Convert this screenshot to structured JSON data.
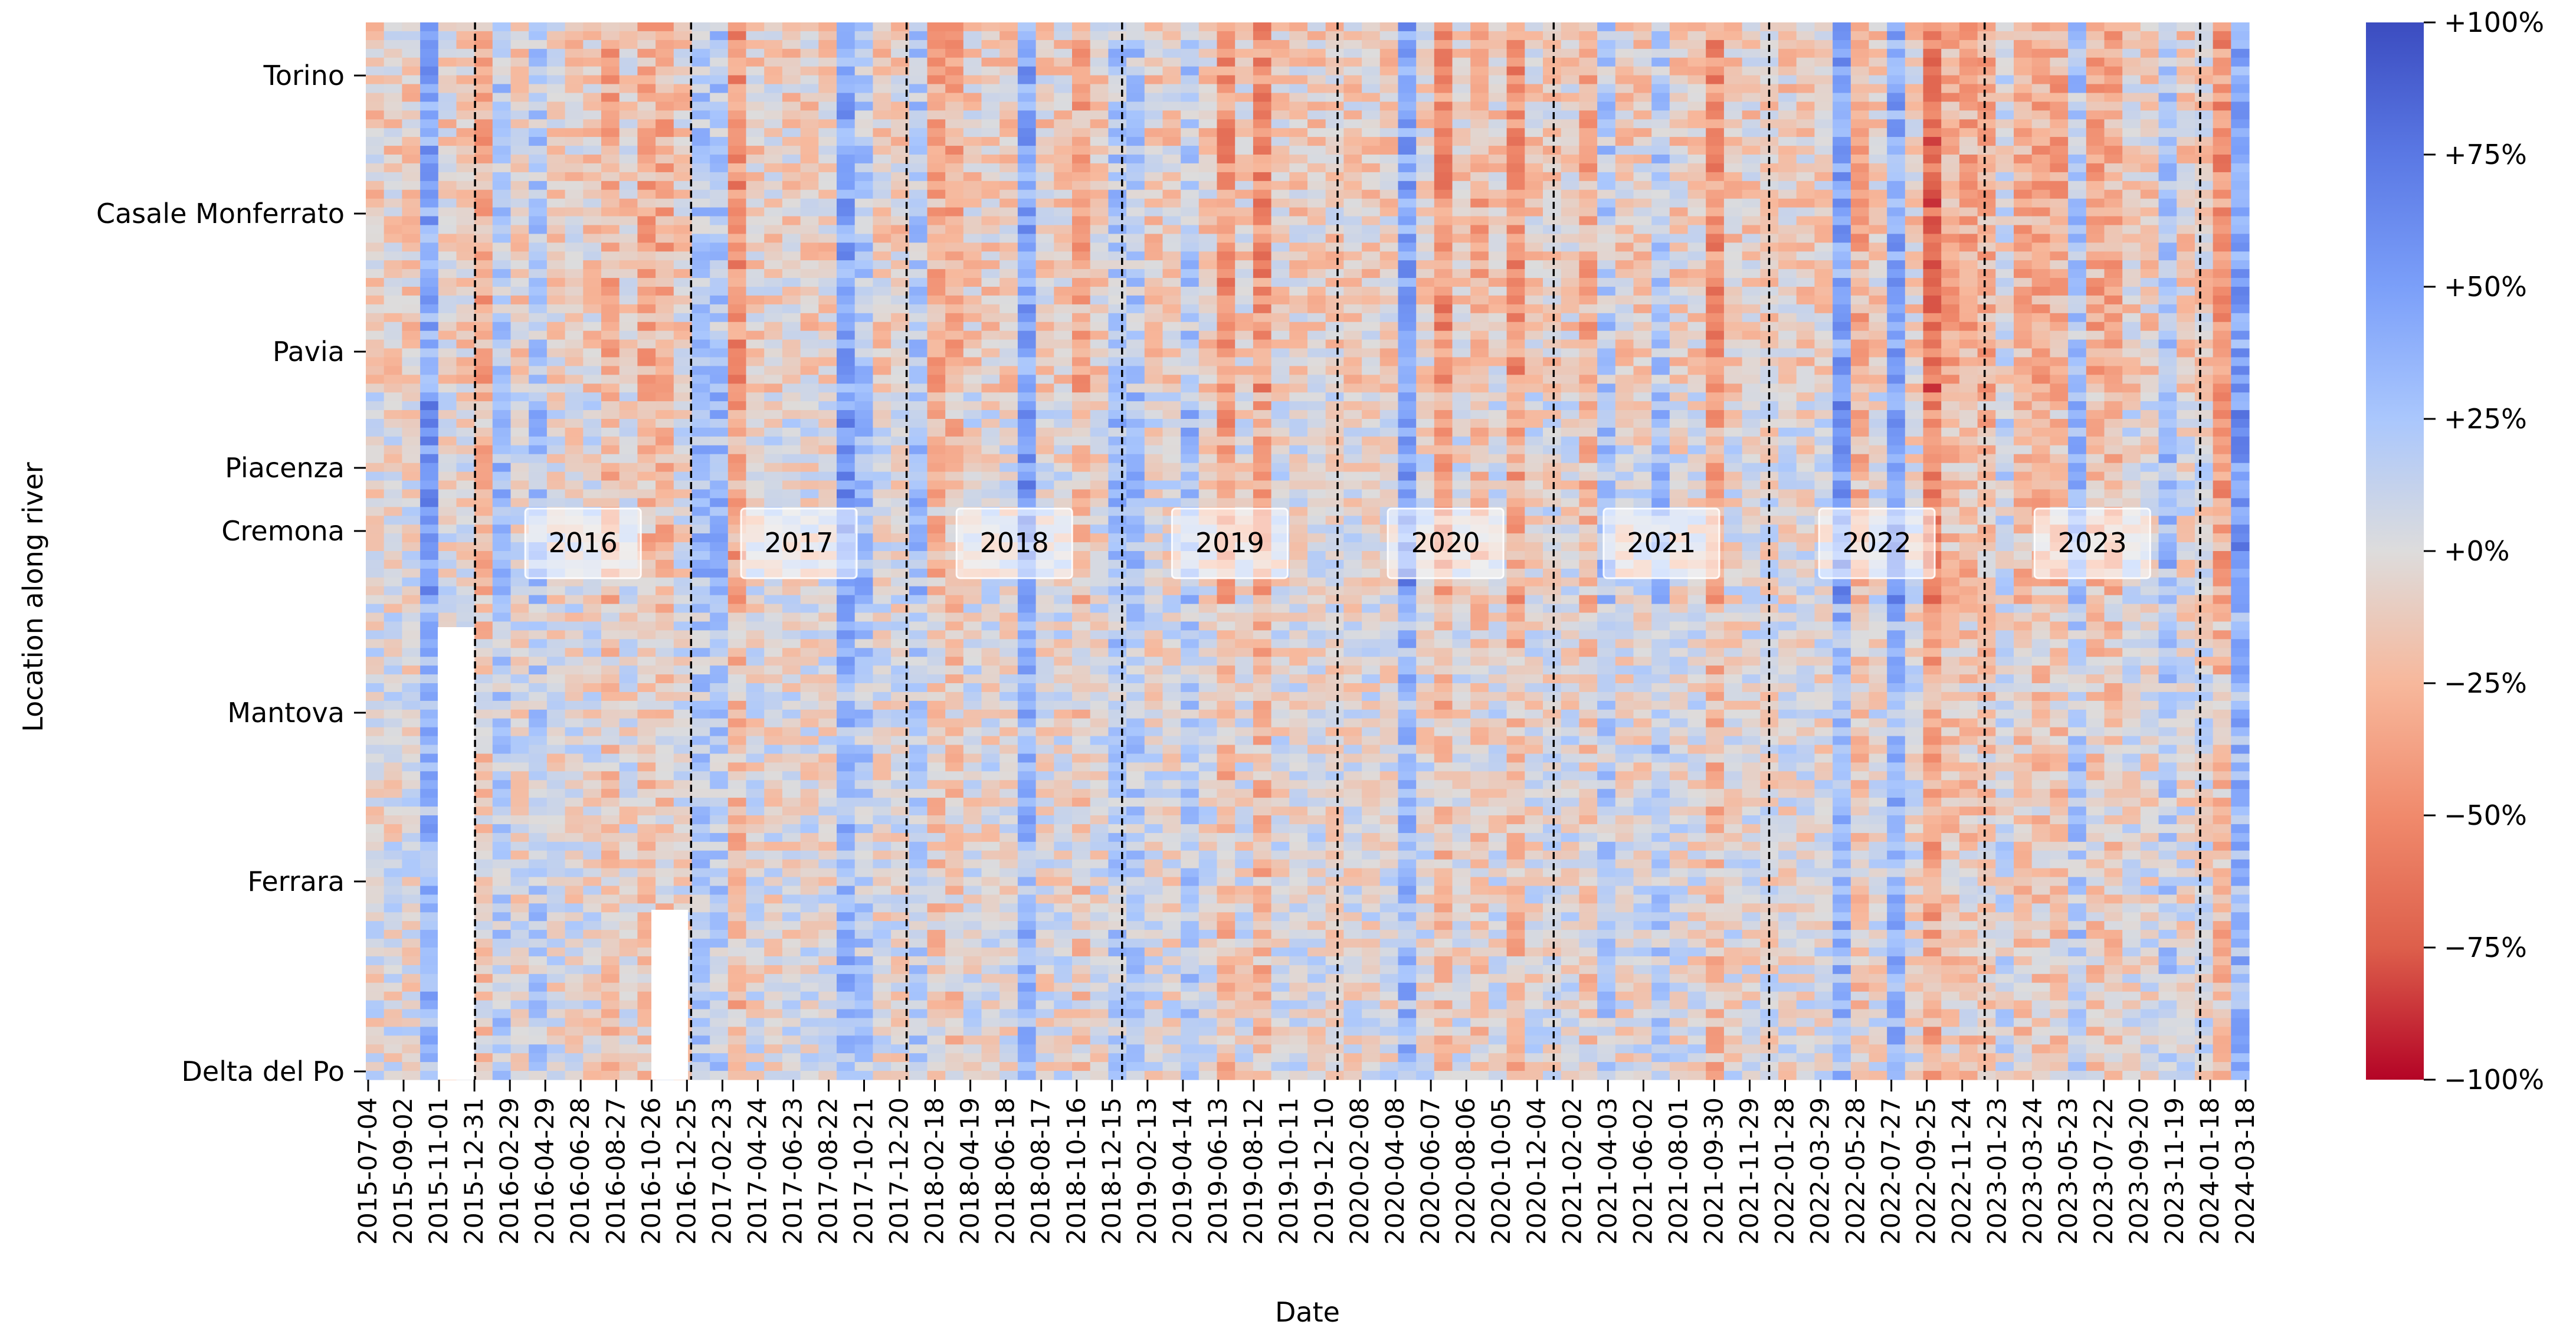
{
  "chart_data": {
    "type": "heatmap",
    "title": "",
    "xlabel": "Date",
    "ylabel": "Location along river",
    "x_tick_labels": [
      "2015-07-04",
      "2015-09-02",
      "2015-11-01",
      "2015-12-31",
      "2016-02-29",
      "2016-04-29",
      "2016-06-28",
      "2016-08-27",
      "2016-10-26",
      "2016-12-25",
      "2017-02-23",
      "2017-04-24",
      "2017-06-23",
      "2017-08-22",
      "2017-10-21",
      "2017-12-20",
      "2018-02-18",
      "2018-04-19",
      "2018-06-18",
      "2018-08-17",
      "2018-10-16",
      "2018-12-15",
      "2019-02-13",
      "2019-04-14",
      "2019-06-13",
      "2019-08-12",
      "2019-10-11",
      "2019-12-10",
      "2020-02-08",
      "2020-04-08",
      "2020-06-07",
      "2020-08-06",
      "2020-10-05",
      "2020-12-04",
      "2021-02-02",
      "2021-04-03",
      "2021-06-02",
      "2021-08-01",
      "2021-09-30",
      "2021-11-29",
      "2022-01-28",
      "2022-03-29",
      "2022-05-28",
      "2022-07-27",
      "2022-09-25",
      "2022-11-24",
      "2023-01-23",
      "2023-03-24",
      "2023-05-23",
      "2023-07-22",
      "2023-09-20",
      "2023-11-19",
      "2024-01-18",
      "2024-03-18"
    ],
    "y_tick_labels": [
      "Torino",
      "Casale Monferrato",
      "Pavia",
      "Piacenza",
      "Cremona",
      "Mantova",
      "Ferrara",
      "Delta del Po"
    ],
    "year_labels": [
      "2016",
      "2017",
      "2018",
      "2019",
      "2020",
      "2021",
      "2022",
      "2023"
    ],
    "year_boundaries": [
      "2016-01-01",
      "2017-01-01",
      "2018-01-01",
      "2019-01-01",
      "2020-01-01",
      "2021-01-01",
      "2022-01-01",
      "2023-01-01",
      "2024-01-01"
    ],
    "colorbar": {
      "tick_labels": [
        "+100%",
        "+75%",
        "+50%",
        "+25%",
        "+0%",
        "−25%",
        "−50%",
        "−75%",
        "−100%"
      ],
      "range": [
        -100,
        100
      ],
      "colormap": "coolwarm_r",
      "positive_color": "#3b4cc0",
      "neutral_color": "#dddcdc",
      "negative_color": "#b40426"
    },
    "missing_data_color": "#ffffff",
    "boundary_line_color": "#000000"
  }
}
